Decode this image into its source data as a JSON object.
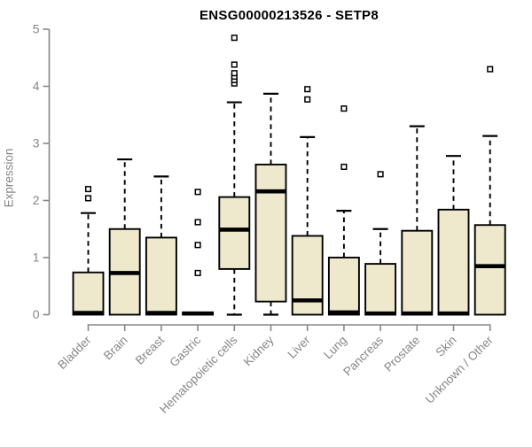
{
  "chart_data": {
    "type": "boxplot",
    "title": "ENSG00000213526 - SETP8",
    "ylabel": "Expression",
    "xlabel": "",
    "ylim": [
      0,
      5
    ],
    "yticks": [
      0,
      1,
      2,
      3,
      4,
      5
    ],
    "grid": false,
    "legend": "none",
    "box_fill": "#EEE8CD",
    "box_stroke": "#000000",
    "median_color": "#000000",
    "axis_color": "#878787",
    "title_color": "#000000",
    "categories": [
      "Bladder",
      "Brain",
      "Breast",
      "Gastric",
      "Hematopoietic cells",
      "Kidney",
      "Liver",
      "Lung",
      "Pancreas",
      "Prostate",
      "Skin",
      "Unknown / Other"
    ],
    "series": [
      {
        "name": "Bladder",
        "whisker_low": 0,
        "q1": 0,
        "median": 0.03,
        "q3": 0.74,
        "whisker_high": 1.78,
        "outliers": [
          2.04,
          2.2
        ]
      },
      {
        "name": "Brain",
        "whisker_low": 0,
        "q1": 0,
        "median": 0.73,
        "q3": 1.5,
        "whisker_high": 2.72,
        "outliers": []
      },
      {
        "name": "Breast",
        "whisker_low": 0,
        "q1": 0,
        "median": 0.03,
        "q3": 1.35,
        "whisker_high": 2.42,
        "outliers": []
      },
      {
        "name": "Gastric",
        "whisker_low": 0,
        "q1": 0,
        "median": 0.02,
        "q3": 0.04,
        "whisker_high": 0.04,
        "outliers": [
          0.73,
          1.22,
          1.62,
          2.15
        ]
      },
      {
        "name": "Hematopoietic cells",
        "whisker_low": 0,
        "q1": 0.8,
        "median": 1.49,
        "q3": 2.06,
        "whisker_high": 3.72,
        "outliers": [
          4.05,
          4.11,
          4.17,
          4.23,
          4.38,
          4.85
        ]
      },
      {
        "name": "Kidney",
        "whisker_low": 0,
        "q1": 0.23,
        "median": 2.16,
        "q3": 2.63,
        "whisker_high": 3.87,
        "outliers": []
      },
      {
        "name": "Liver",
        "whisker_low": 0,
        "q1": 0,
        "median": 0.25,
        "q3": 1.38,
        "whisker_high": 3.11,
        "outliers": [
          3.77,
          3.95
        ]
      },
      {
        "name": "Lung",
        "whisker_low": 0,
        "q1": 0,
        "median": 0.04,
        "q3": 1.0,
        "whisker_high": 1.82,
        "outliers": [
          2.59,
          3.61
        ]
      },
      {
        "name": "Pancreas",
        "whisker_low": 0,
        "q1": 0,
        "median": 0.02,
        "q3": 0.89,
        "whisker_high": 1.5,
        "outliers": [
          2.46
        ]
      },
      {
        "name": "Prostate",
        "whisker_low": 0,
        "q1": 0,
        "median": 0.02,
        "q3": 1.47,
        "whisker_high": 3.3,
        "outliers": []
      },
      {
        "name": "Skin",
        "whisker_low": 0,
        "q1": 0,
        "median": 0.02,
        "q3": 1.84,
        "whisker_high": 2.78,
        "outliers": []
      },
      {
        "name": "Unknown / Other",
        "whisker_low": 0,
        "q1": 0,
        "median": 0.85,
        "q3": 1.57,
        "whisker_high": 3.13,
        "outliers": [
          4.3
        ]
      }
    ]
  }
}
